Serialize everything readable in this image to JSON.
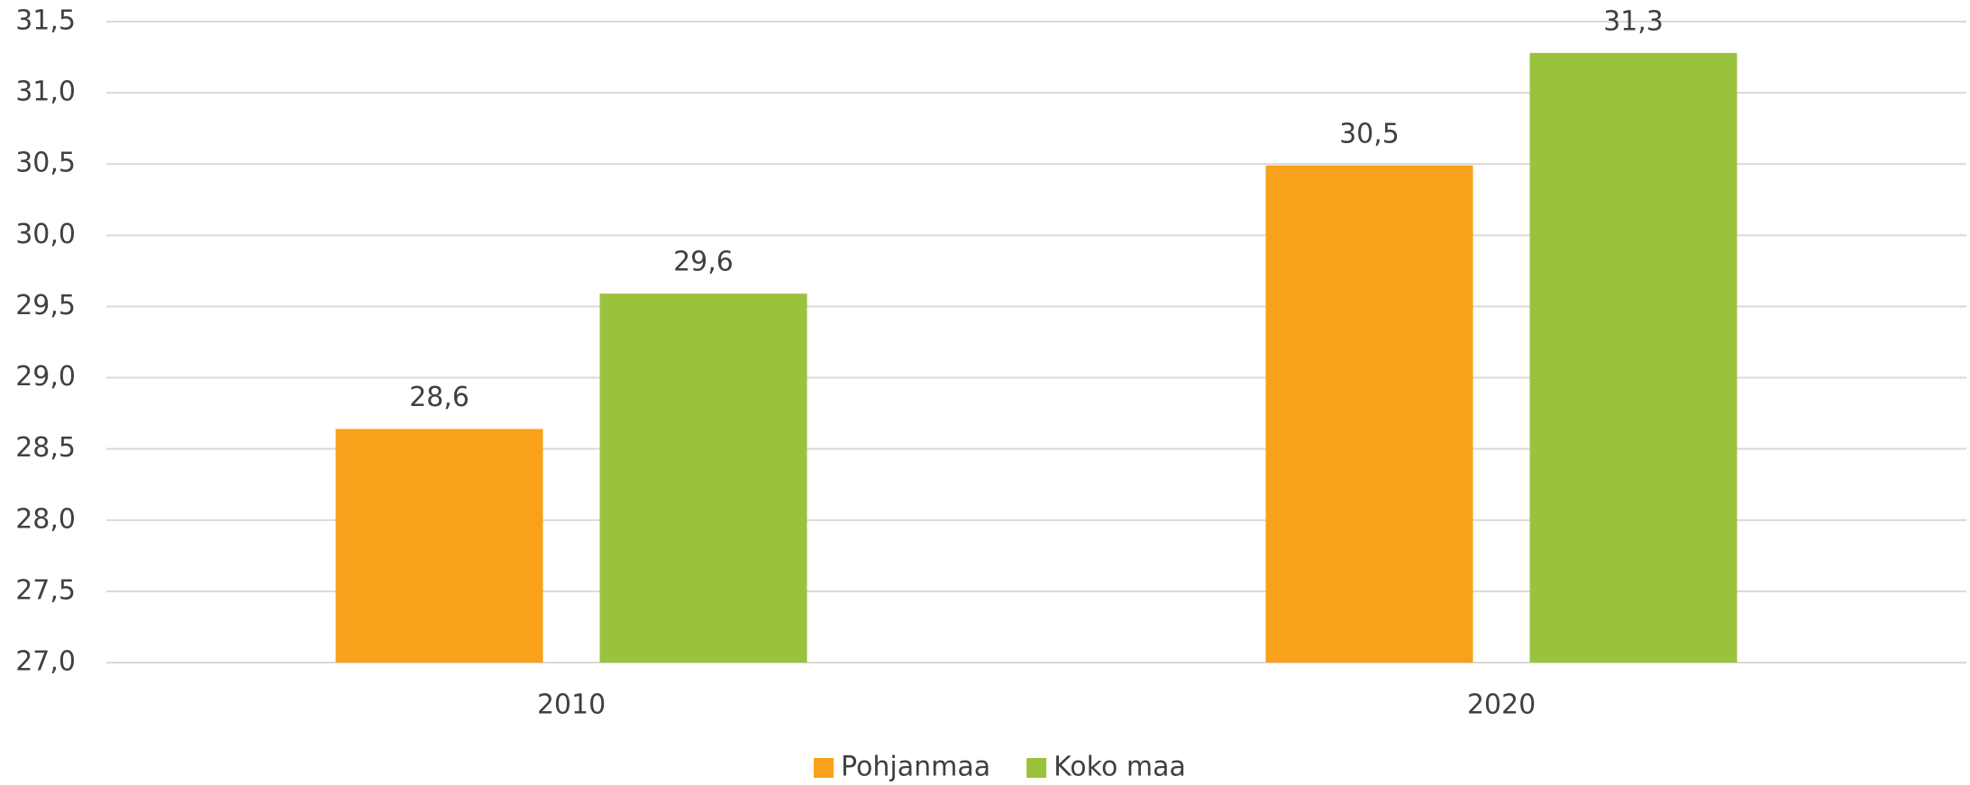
{
  "chart_data": {
    "type": "bar",
    "categories": [
      "2010",
      "2020"
    ],
    "series": [
      {
        "name": "Pohjanmaa",
        "color": "#f9a11b",
        "values": [
          28.64,
          30.49
        ],
        "value_labels": [
          "28,6",
          "30,5"
        ]
      },
      {
        "name": "Koko maa",
        "color": "#9bc23c",
        "values": [
          29.59,
          31.28
        ],
        "value_labels": [
          "29,6",
          "31,3"
        ]
      }
    ],
    "ylim": [
      27.0,
      31.5
    ],
    "yticks": [
      {
        "value": 27.0,
        "label": "27,0"
      },
      {
        "value": 27.5,
        "label": "27,5"
      },
      {
        "value": 28.0,
        "label": "28,0"
      },
      {
        "value": 28.5,
        "label": "28,5"
      },
      {
        "value": 29.0,
        "label": "29,0"
      },
      {
        "value": 29.5,
        "label": "29,5"
      },
      {
        "value": 30.0,
        "label": "30,0"
      },
      {
        "value": 30.5,
        "label": "30,5"
      },
      {
        "value": 31.0,
        "label": "31,0"
      },
      {
        "value": 31.5,
        "label": "31,5"
      }
    ],
    "grid": true,
    "legend": "bottom"
  }
}
